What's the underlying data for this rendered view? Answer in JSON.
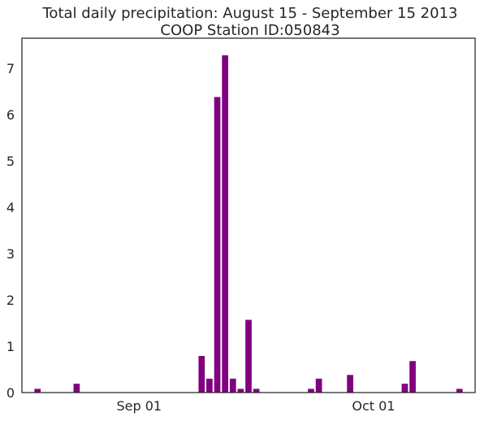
{
  "chart_data": {
    "type": "bar",
    "title": [
      "Total daily precipitation: August 15 - September 15 2013",
      "COOP Station ID:050843"
    ],
    "xlabel": "",
    "ylabel": "",
    "bar_color": "#800080",
    "xlim": [
      "2013-08-17",
      "2013-10-14"
    ],
    "ylim": [
      0,
      7.65
    ],
    "yticks": [
      0,
      1,
      2,
      3,
      4,
      5,
      6,
      7
    ],
    "xticks": [
      {
        "date": "2013-09-01",
        "label": "Sep 01"
      },
      {
        "date": "2013-10-01",
        "label": "Oct 01"
      }
    ],
    "grid": false,
    "x": [
      "2013-08-19",
      "2013-08-24",
      "2013-09-09",
      "2013-09-10",
      "2013-09-11",
      "2013-09-12",
      "2013-09-13",
      "2013-09-14",
      "2013-09-15",
      "2013-09-16",
      "2013-09-17",
      "2013-09-23",
      "2013-09-24",
      "2013-09-28",
      "2013-10-05",
      "2013-10-06",
      "2013-10-12"
    ],
    "values": [
      0.08,
      0.19,
      0.79,
      0.3,
      6.38,
      7.28,
      0.3,
      0.08,
      1.57,
      0.08,
      0,
      0.08,
      0.3,
      0.38,
      0.19,
      0.68,
      0.08
    ]
  }
}
